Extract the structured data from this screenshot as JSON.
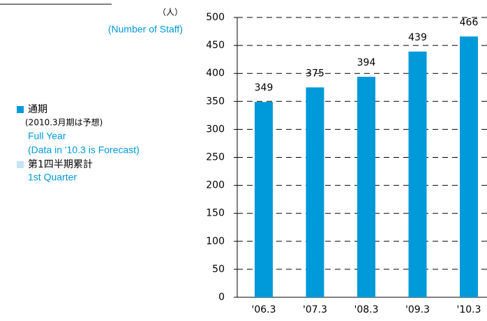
{
  "chart_data": {
    "type": "bar",
    "unit": "（人）",
    "unit_en": "(Number of Staff)",
    "categories": [
      "'06.3",
      "'07.3",
      "'08.3",
      "'09.3",
      "'10.3"
    ],
    "values": [
      349,
      375,
      394,
      439,
      466
    ],
    "color": "#0099d9",
    "ylim": [
      0,
      500
    ],
    "yticks": [
      0,
      50,
      100,
      150,
      200,
      250,
      300,
      350,
      400,
      450,
      500
    ],
    "grid": true,
    "legend": [
      {
        "name": "通期",
        "note": "(2010.3月期は予想)",
        "name_en": "Full Year",
        "note_en": "(Data in '10.3 is Forecast)",
        "color": "#0099d9"
      },
      {
        "name": "第1四半期累計",
        "name_en": "1st Quarter",
        "color": "#c5e4f5"
      }
    ]
  }
}
